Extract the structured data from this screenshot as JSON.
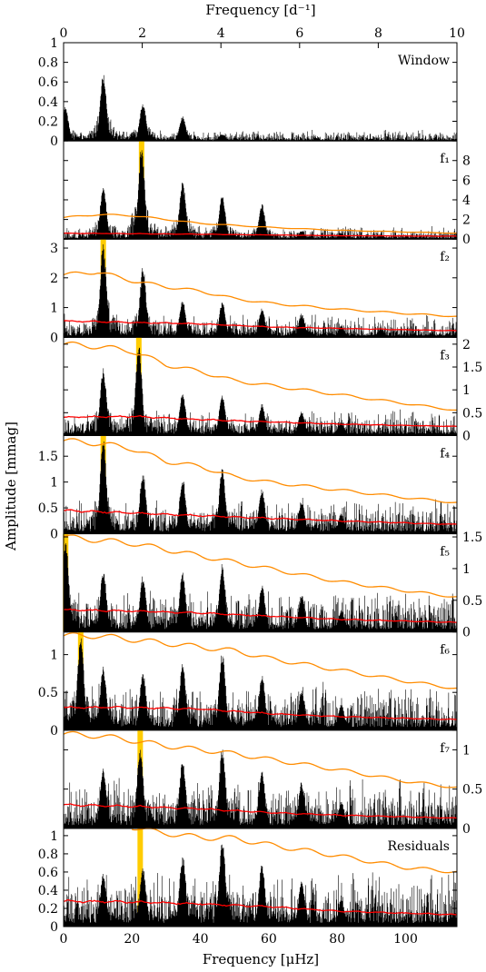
{
  "figure": {
    "top_axis_title": "Frequency [d⁻¹]",
    "bottom_axis_title": "Frequency [μHz]",
    "y_axis_title": "Amplitude [mmag]"
  },
  "chart_data": {
    "type": "line",
    "x_range_uHz": [
      0,
      115
    ],
    "x_range_cpd": [
      0,
      10
    ],
    "x_ticks_uHz": [
      "0",
      "20",
      "40",
      "60",
      "80",
      "100"
    ],
    "x_ticks_cpd": [
      "0",
      "2",
      "4",
      "6",
      "8",
      "10"
    ],
    "colors": {
      "spectrum": "#000000",
      "threshold": "#ff8c00",
      "noise": "#ff0000",
      "highlight": "#ffcc00"
    },
    "panels": [
      {
        "label": "Window",
        "ymax": 1.0,
        "axis_side": "left",
        "ticks": [
          "0",
          "0.2",
          "0.4",
          "0.6",
          "0.8",
          "1"
        ],
        "tick_values": [
          0,
          0.2,
          0.4,
          0.6,
          0.8,
          1
        ],
        "highlight_uHz": null,
        "peaks": [
          [
            0.5,
            0.35
          ],
          [
            11.6,
            0.68
          ],
          [
            23.2,
            0.4
          ],
          [
            34.8,
            0.25
          ],
          [
            46.4,
            0.07
          ]
        ],
        "threshold": null,
        "noise": null,
        "noise_level": 0.05
      },
      {
        "label": "f₁",
        "ymax": 10,
        "axis_side": "right",
        "ticks": [
          "0",
          "2",
          "4",
          "6",
          "8"
        ],
        "tick_values": [
          0,
          2,
          4,
          6,
          8
        ],
        "highlight_uHz": 22.8,
        "peaks": [
          [
            11.6,
            5.5
          ],
          [
            22.8,
            9.5
          ],
          [
            34.8,
            6.0
          ],
          [
            46.4,
            4.5
          ],
          [
            58.0,
            3.6
          ],
          [
            69.6,
            0.9
          ],
          [
            81.2,
            0.6
          ],
          [
            92.8,
            0.5
          ]
        ],
        "threshold": [
          [
            0,
            2.2
          ],
          [
            10,
            2.5
          ],
          [
            20,
            2.4
          ],
          [
            30,
            2.0
          ],
          [
            40,
            1.6
          ],
          [
            60,
            1.2
          ],
          [
            80,
            0.9
          ],
          [
            115,
            0.6
          ]
        ],
        "noise": [
          [
            0,
            0.6
          ],
          [
            40,
            0.5
          ],
          [
            80,
            0.35
          ],
          [
            115,
            0.3
          ]
        ],
        "noise_level": 0.6
      },
      {
        "label": "f₂",
        "ymax": 3.3,
        "axis_side": "left",
        "ticks": [
          "0",
          "1",
          "2",
          "3"
        ],
        "tick_values": [
          0,
          1,
          2,
          3
        ],
        "highlight_uHz": 11.6,
        "peaks": [
          [
            11.6,
            3.2
          ],
          [
            23.2,
            2.4
          ],
          [
            34.8,
            1.3
          ],
          [
            46.4,
            1.2
          ],
          [
            58.0,
            1.0
          ],
          [
            69.6,
            0.8
          ],
          [
            81.2,
            0.4
          ],
          [
            92.8,
            0.3
          ]
        ],
        "threshold": [
          [
            0,
            2.1
          ],
          [
            10,
            2.2
          ],
          [
            20,
            1.9
          ],
          [
            30,
            1.7
          ],
          [
            40,
            1.55
          ],
          [
            50,
            1.3
          ],
          [
            60,
            1.15
          ],
          [
            80,
            0.95
          ],
          [
            100,
            0.8
          ],
          [
            115,
            0.7
          ]
        ],
        "noise": [
          [
            0,
            0.55
          ],
          [
            20,
            0.5
          ],
          [
            40,
            0.45
          ],
          [
            60,
            0.35
          ],
          [
            80,
            0.3
          ],
          [
            115,
            0.22
          ]
        ],
        "noise_level": 0.35
      },
      {
        "label": "f₃",
        "ymax": 2.15,
        "axis_side": "right",
        "ticks": [
          "0",
          "0.5",
          "1",
          "1.5",
          "2"
        ],
        "tick_values": [
          0,
          0.5,
          1,
          1.5,
          2
        ],
        "highlight_uHz": 22.0,
        "peaks": [
          [
            11.6,
            1.5
          ],
          [
            22.0,
            2.05
          ],
          [
            34.8,
            0.95
          ],
          [
            46.4,
            0.9
          ],
          [
            58.0,
            0.7
          ],
          [
            69.6,
            0.55
          ],
          [
            81.2,
            0.3
          ]
        ],
        "threshold": [
          [
            0,
            2.0
          ],
          [
            10,
            1.95
          ],
          [
            20,
            1.85
          ],
          [
            30,
            1.55
          ],
          [
            40,
            1.4
          ],
          [
            50,
            1.2
          ],
          [
            60,
            1.1
          ],
          [
            80,
            0.9
          ],
          [
            100,
            0.7
          ],
          [
            115,
            0.55
          ]
        ],
        "noise": [
          [
            0,
            0.4
          ],
          [
            20,
            0.42
          ],
          [
            40,
            0.35
          ],
          [
            60,
            0.3
          ],
          [
            80,
            0.25
          ],
          [
            115,
            0.2
          ]
        ],
        "noise_level": 0.25
      },
      {
        "label": "f₄",
        "ymax": 1.9,
        "axis_side": "left",
        "ticks": [
          "0",
          "0.5",
          "1",
          "1.5"
        ],
        "tick_values": [
          0,
          0.5,
          1,
          1.5
        ],
        "highlight_uHz": 11.6,
        "peaks": [
          [
            11.6,
            1.85
          ],
          [
            23.2,
            1.2
          ],
          [
            34.8,
            1.1
          ],
          [
            46.4,
            1.3
          ],
          [
            58.0,
            0.9
          ],
          [
            69.6,
            0.65
          ],
          [
            81.2,
            0.4
          ]
        ],
        "threshold": [
          [
            0,
            1.8
          ],
          [
            10,
            1.75
          ],
          [
            20,
            1.65
          ],
          [
            30,
            1.4
          ],
          [
            40,
            1.3
          ],
          [
            50,
            1.1
          ],
          [
            60,
            1.0
          ],
          [
            80,
            0.85
          ],
          [
            100,
            0.7
          ],
          [
            115,
            0.6
          ]
        ],
        "noise": [
          [
            0,
            0.45
          ],
          [
            20,
            0.4
          ],
          [
            40,
            0.35
          ],
          [
            60,
            0.3
          ],
          [
            80,
            0.25
          ],
          [
            115,
            0.18
          ]
        ],
        "noise_level": 0.3
      },
      {
        "label": "f₅",
        "ymax": 1.55,
        "axis_side": "right",
        "ticks": [
          "0",
          "0.5",
          "1",
          "1.5"
        ],
        "tick_values": [
          0,
          0.5,
          1,
          1.5
        ],
        "highlight_uHz": 0.6,
        "peaks": [
          [
            0.6,
            1.5
          ],
          [
            11.6,
            1.0
          ],
          [
            23.2,
            0.9
          ],
          [
            34.8,
            0.95
          ],
          [
            46.4,
            1.1
          ],
          [
            58.0,
            0.75
          ],
          [
            69.6,
            0.6
          ],
          [
            81.2,
            0.35
          ]
        ],
        "threshold": [
          [
            0,
            1.5
          ],
          [
            10,
            1.45
          ],
          [
            20,
            1.4
          ],
          [
            30,
            1.3
          ],
          [
            40,
            1.2
          ],
          [
            50,
            1.1
          ],
          [
            60,
            1.0
          ],
          [
            80,
            0.8
          ],
          [
            100,
            0.65
          ],
          [
            115,
            0.55
          ]
        ],
        "noise": [
          [
            0,
            0.35
          ],
          [
            20,
            0.33
          ],
          [
            40,
            0.3
          ],
          [
            60,
            0.25
          ],
          [
            80,
            0.2
          ],
          [
            115,
            0.15
          ]
        ],
        "noise_level": 0.3
      },
      {
        "label": "f₆",
        "ymax": 1.3,
        "axis_side": "left",
        "ticks": [
          "0",
          "0.5",
          "1"
        ],
        "tick_values": [
          0,
          0.5,
          1
        ],
        "highlight_uHz": 5.0,
        "peaks": [
          [
            5.0,
            1.28
          ],
          [
            11.6,
            0.85
          ],
          [
            23.2,
            0.8
          ],
          [
            34.8,
            0.9
          ],
          [
            46.4,
            1.05
          ],
          [
            58.0,
            0.75
          ],
          [
            69.6,
            0.55
          ],
          [
            81.2,
            0.35
          ]
        ],
        "threshold": [
          [
            0,
            1.25
          ],
          [
            10,
            1.25
          ],
          [
            20,
            1.2
          ],
          [
            30,
            1.15
          ],
          [
            40,
            1.1
          ],
          [
            50,
            1.05
          ],
          [
            60,
            0.95
          ],
          [
            80,
            0.8
          ],
          [
            100,
            0.65
          ],
          [
            115,
            0.55
          ]
        ],
        "noise": [
          [
            0,
            0.3
          ],
          [
            20,
            0.3
          ],
          [
            40,
            0.28
          ],
          [
            60,
            0.22
          ],
          [
            80,
            0.18
          ],
          [
            115,
            0.14
          ]
        ],
        "noise_level": 0.28
      },
      {
        "label": "f₇",
        "ymax": 1.25,
        "axis_side": "right",
        "ticks": [
          "0",
          "0.5",
          "1"
        ],
        "tick_values": [
          0,
          0.5,
          1
        ],
        "highlight_uHz": 22.4,
        "peaks": [
          [
            11.6,
            0.8
          ],
          [
            22.4,
            1.05
          ],
          [
            34.8,
            0.9
          ],
          [
            46.4,
            1.05
          ],
          [
            58.0,
            0.75
          ],
          [
            69.6,
            0.6
          ],
          [
            81.2,
            0.35
          ]
        ],
        "threshold": [
          [
            0,
            1.2
          ],
          [
            10,
            1.18
          ],
          [
            20,
            1.12
          ],
          [
            30,
            1.05
          ],
          [
            40,
            1.0
          ],
          [
            50,
            0.95
          ],
          [
            60,
            0.88
          ],
          [
            80,
            0.75
          ],
          [
            100,
            0.6
          ],
          [
            115,
            0.52
          ]
        ],
        "noise": [
          [
            0,
            0.3
          ],
          [
            20,
            0.28
          ],
          [
            40,
            0.25
          ],
          [
            60,
            0.2
          ],
          [
            80,
            0.17
          ],
          [
            115,
            0.13
          ]
        ],
        "noise_level": 0.28
      },
      {
        "label": "Residuals",
        "ymax": 1.08,
        "axis_side": "left",
        "ticks": [
          "0",
          "0.2",
          "0.4",
          "0.6",
          "0.8",
          "1"
        ],
        "tick_values": [
          0,
          0.2,
          0.4,
          0.6,
          0.8,
          1
        ],
        "highlight_uHz": 22.4,
        "peaks": [
          [
            11.6,
            0.6
          ],
          [
            23.2,
            0.65
          ],
          [
            34.8,
            0.8
          ],
          [
            46.4,
            1.0
          ],
          [
            58.0,
            0.7
          ],
          [
            69.6,
            0.5
          ],
          [
            81.2,
            0.3
          ]
        ],
        "threshold": [
          [
            20,
            1.1
          ],
          [
            25,
            1.05
          ],
          [
            30,
            1.03
          ],
          [
            35,
            1.0
          ],
          [
            40,
            0.98
          ],
          [
            50,
            0.97
          ],
          [
            60,
            0.9
          ],
          [
            80,
            0.78
          ],
          [
            100,
            0.65
          ],
          [
            115,
            0.6
          ]
        ],
        "noise": [
          [
            0,
            0.28
          ],
          [
            20,
            0.27
          ],
          [
            40,
            0.25
          ],
          [
            60,
            0.22
          ],
          [
            80,
            0.17
          ],
          [
            115,
            0.13
          ]
        ],
        "noise_level": 0.27
      }
    ]
  }
}
